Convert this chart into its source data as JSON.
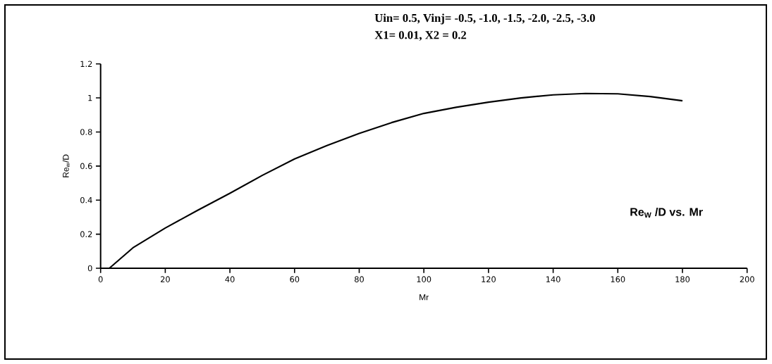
{
  "chart_data": {
    "type": "line",
    "xlabel": "Mr",
    "ylabel": "Re$_{w}$/D",
    "annotations": [
      "Uin= 0.5, Vinj= -0.5, -1.0, -1.5, -2.0, -2.5, -3.0",
      "X1= 0.01, X2 = 0.2",
      "Re$_{W}$ /D vs. Mr"
    ],
    "series": [
      {
        "color": "#000000",
        "x": [
          2.7,
          10,
          20,
          30,
          40,
          50,
          60,
          70,
          80,
          90,
          100,
          110,
          120,
          130,
          140,
          150,
          160,
          170,
          180
        ],
        "values": [
          0,
          0.12,
          0.236,
          0.34,
          0.44,
          0.545,
          0.642,
          0.72,
          0.792,
          0.855,
          0.909,
          0.945,
          0.975,
          1.0,
          1.018,
          1.026,
          1.024,
          1.008,
          0.983
        ]
      }
    ],
    "xlim": [
      0,
      200
    ],
    "ylim": [
      0,
      1.2
    ],
    "xticks": [
      0,
      20,
      40,
      60,
      80,
      100,
      120,
      140,
      160,
      180,
      200
    ],
    "yticks": [
      0,
      0.2,
      0.4,
      0.6,
      0.8,
      1,
      1.2
    ],
    "grid": false,
    "marker": "none",
    "line_style": "solid"
  }
}
